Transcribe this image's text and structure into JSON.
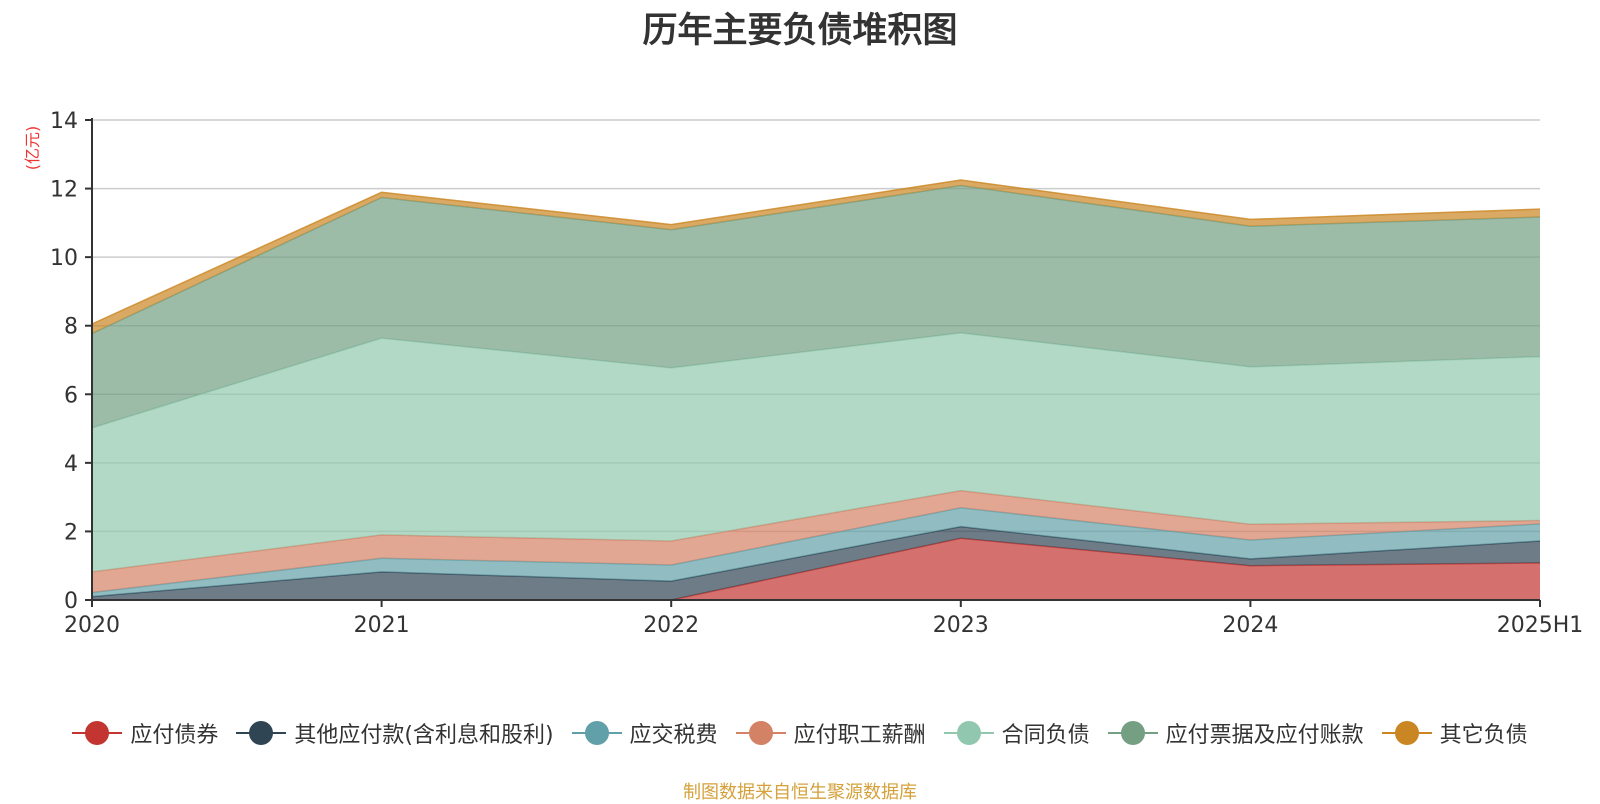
{
  "chart_data": {
    "type": "area",
    "stacked": true,
    "title": "历年主要负债堆积图",
    "ylabel": "(亿元)",
    "x": [
      "2020",
      "2021",
      "2022",
      "2023",
      "2024",
      "2025H1"
    ],
    "ylim": [
      0,
      14
    ],
    "yticks": [
      0,
      2,
      4,
      6,
      8,
      10,
      12,
      14
    ],
    "grid": true,
    "legend_position": "bottom",
    "series": [
      {
        "name": "应付债券",
        "color": "#c23531",
        "values": [
          0,
          0,
          0,
          1.8,
          1.0,
          1.08
        ]
      },
      {
        "name": "其他应付款(含利息和股利)",
        "color": "#2f4554",
        "values": [
          0.1,
          0.82,
          0.55,
          0.34,
          0.2,
          0.64
        ]
      },
      {
        "name": "应交税费",
        "color": "#61a0a8",
        "values": [
          0.12,
          0.4,
          0.47,
          0.55,
          0.55,
          0.5
        ]
      },
      {
        "name": "应付职工薪酬",
        "color": "#d48265",
        "values": [
          0.6,
          0.68,
          0.7,
          0.5,
          0.46,
          0.1
        ]
      },
      {
        "name": "合同负债",
        "color": "#91c7ae",
        "values": [
          4.2,
          5.74,
          5.05,
          4.6,
          4.59,
          4.78
        ]
      },
      {
        "name": "应付票据及应付账款",
        "color": "#749f83",
        "values": [
          2.75,
          4.1,
          4.03,
          4.3,
          4.1,
          4.07
        ]
      },
      {
        "name": "其它负债",
        "color": "#ca8622",
        "values": [
          0.28,
          0.15,
          0.15,
          0.16,
          0.2,
          0.23
        ]
      }
    ]
  },
  "footer": {
    "source": "制图数据来自恒生聚源数据库"
  }
}
